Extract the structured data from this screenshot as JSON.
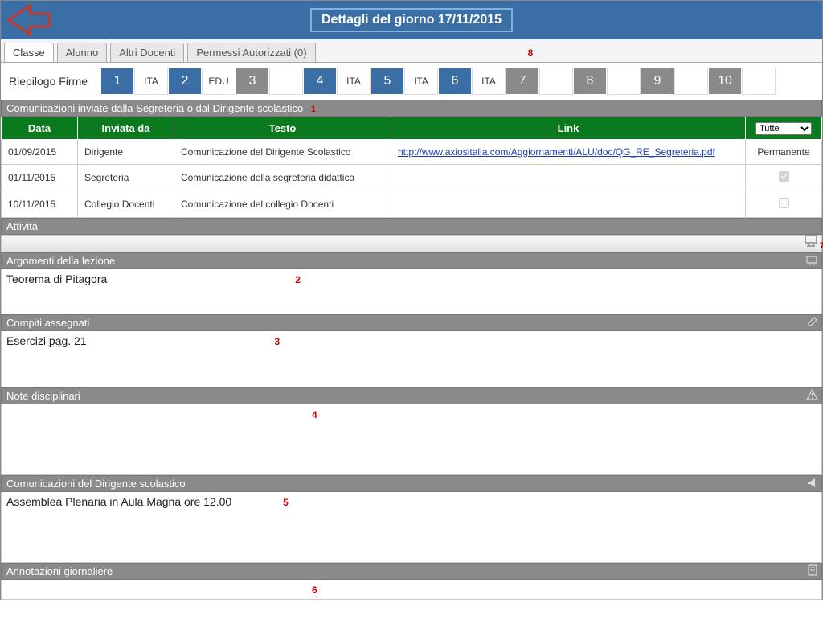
{
  "header": {
    "title": "Dettagli del giorno 17/11/2015"
  },
  "tabs": {
    "items": [
      {
        "label": "Classe",
        "active": true
      },
      {
        "label": "Alunno",
        "active": false
      },
      {
        "label": "Altri Docenti",
        "active": false
      },
      {
        "label": "Permessi Autorizzati (0)",
        "active": false
      }
    ],
    "annot": "8"
  },
  "riepilogo": {
    "label": "Riepilogo Firme"
  },
  "periods": [
    {
      "n": "1",
      "label": "ITA",
      "color": "blue"
    },
    {
      "n": "2",
      "label": "EDU",
      "color": "blue"
    },
    {
      "n": "3",
      "label": "",
      "color": "grey"
    },
    {
      "n": "4",
      "label": "ITA",
      "color": "blue"
    },
    {
      "n": "5",
      "label": "ITA",
      "color": "blue"
    },
    {
      "n": "6",
      "label": "ITA",
      "color": "blue"
    },
    {
      "n": "7",
      "label": "",
      "color": "grey"
    },
    {
      "n": "8",
      "label": "",
      "color": "grey"
    },
    {
      "n": "9",
      "label": "",
      "color": "grey"
    },
    {
      "n": "10",
      "label": "",
      "color": "grey"
    }
  ],
  "communications": {
    "header": "Comunicazioni inviate dalla Segreteria o dal Dirigente scolastico",
    "annot": "1",
    "columns": {
      "data": "Data",
      "inviata": "Inviata da",
      "testo": "Testo",
      "link": "Link"
    },
    "filter": "Tutte",
    "rows": [
      {
        "data": "01/09/2015",
        "inviata": "Dirigente",
        "testo": "Comunicazione del Dirigente Scolastico",
        "link": "http://www.axiositalia.com/Aggiornamenti/ALU/doc/QG_RE_Segreteria.pdf",
        "status": "Permanente"
      },
      {
        "data": "01/11/2015",
        "inviata": "Segreteria",
        "testo": "Comunicazione della segreteria didattica",
        "link": "",
        "status": "checked"
      },
      {
        "data": "10/11/2015",
        "inviata": "Collegio Docenti",
        "testo": "Comunicazione del collegio Docenti",
        "link": "",
        "status": "unchecked"
      }
    ]
  },
  "attivita": {
    "header": "Attività",
    "annot": "7"
  },
  "argomenti": {
    "header": "Argomenti della lezione",
    "text": "Teorema di Pitagora",
    "annot": "2"
  },
  "compiti": {
    "header": "Compiti assegnati",
    "text_pre": "Esercizi ",
    "text_u": "pag",
    "text_post": ". 21",
    "annot": "3"
  },
  "note": {
    "header": "Note disciplinari",
    "annot": "4"
  },
  "comm_dir": {
    "header": "Comunicazioni del Dirigente scolastico",
    "text": "Assemblea Plenaria in Aula Magna ore 12.00",
    "annot": "5"
  },
  "annotazioni": {
    "header": "Annotazioni giornaliere",
    "annot": "6"
  }
}
